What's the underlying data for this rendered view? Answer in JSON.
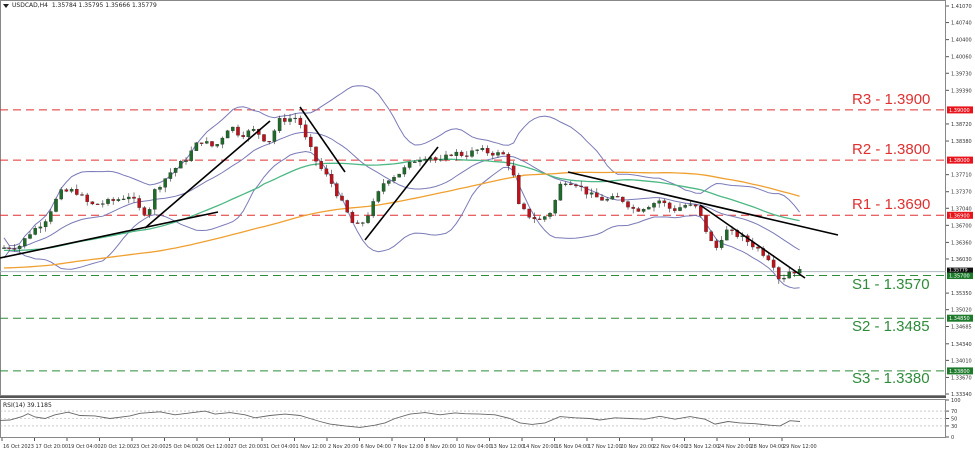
{
  "header": {
    "symbol": "USDCAD,H4",
    "ohlc": "1.35784 1.35795 1.35666 1.35779"
  },
  "colors": {
    "bull": "#1e6b2a",
    "bear": "#c0111b",
    "resistance": "#e03030",
    "support": "#2e8b3a",
    "bollinger": "#7a7ab8",
    "ma_green": "#4cb884",
    "ma_orange": "#f0a030",
    "trendline": "#000000",
    "rsi": "#666666"
  },
  "price_axis": {
    "ticks": [
      "1.41070",
      "1.40740",
      "1.40400",
      "1.40060",
      "1.39730",
      "1.39390",
      "1.38720",
      "1.38380",
      "1.37710",
      "1.37370",
      "1.37040",
      "1.36700",
      "1.36360",
      "1.36030",
      "1.35350",
      "1.35020",
      "1.34685",
      "1.34340",
      "1.34010",
      "1.33670",
      "1.33340"
    ],
    "current_price_tag": "1.35779",
    "current_price_tag2": "1.35700"
  },
  "levels": [
    {
      "name": "R3",
      "value": "1.3900",
      "label": "R3 - 1.3900",
      "tag": "1.39000",
      "type": "resistance"
    },
    {
      "name": "R2",
      "value": "1.3800",
      "label": "R2 - 1.3800",
      "tag": "1.38000",
      "type": "resistance"
    },
    {
      "name": "R1",
      "value": "1.3690",
      "label": "R1 - 1.3690",
      "tag": "1.36900",
      "type": "resistance"
    },
    {
      "name": "S1",
      "value": "1.3570",
      "label": "S1 - 1.3570",
      "tag": "1.35700",
      "type": "support"
    },
    {
      "name": "S2",
      "value": "1.3485",
      "label": "S2 - 1.3485",
      "tag": "1.34850",
      "type": "support"
    },
    {
      "name": "S3",
      "value": "1.3380",
      "label": "S3 - 1.3380",
      "tag": "1.33800",
      "type": "support"
    }
  ],
  "rsi": {
    "label": "RSI(14) 39.1185",
    "ticks": [
      "100",
      "70",
      "50",
      "30",
      "0"
    ]
  },
  "time_axis": {
    "labels": [
      "16 Oct 2023",
      "17 Oct 20:00",
      "19 Oct 04:00",
      "20 Oct 12:00",
      "23 Oct 20:00",
      "25 Oct 04:00",
      "26 Oct 12:00",
      "27 Oct 20:00",
      "31 Oct 04:00",
      "1 Nov 12:00",
      "2 Nov 20:00",
      "6 Nov 04:00",
      "7 Nov 12:00",
      "8 Nov 20:00",
      "10 Nov 04:00",
      "13 Nov 12:00",
      "14 Nov 20:00",
      "16 Nov 04:00",
      "17 Nov 12:00",
      "20 Nov 20:00",
      "22 Nov 04:00",
      "23 Nov 12:00",
      "24 Nov 20:00",
      "28 Nov 04:00",
      "29 Nov 12:00"
    ]
  },
  "chart_data": {
    "type": "candlestick",
    "title": "USDCAD,H4",
    "ylabel": "Price",
    "ylim": [
      1.3334,
      1.4107
    ],
    "indicators": [
      "Bollinger Bands",
      "Moving Average (green)",
      "Moving Average (orange)",
      "RSI(14)"
    ],
    "rsi_value": 39.1185,
    "rsi_levels": [
      70,
      50,
      30
    ],
    "levels": {
      "R3": 1.39,
      "R2": 1.38,
      "R1": 1.369,
      "S1": 1.357,
      "S2": 1.3485,
      "S3": 1.338
    },
    "approx_close_path": [
      {
        "x": "16 Oct 2023",
        "close": 1.3625
      },
      {
        "x": "17 Oct 20:00",
        "close": 1.3665
      },
      {
        "x": "19 Oct 04:00",
        "close": 1.3735
      },
      {
        "x": "20 Oct 12:00",
        "close": 1.371
      },
      {
        "x": "23 Oct 20:00",
        "close": 1.37
      },
      {
        "x": "25 Oct 04:00",
        "close": 1.38
      },
      {
        "x": "26 Oct 12:00",
        "close": 1.383
      },
      {
        "x": "27 Oct 20:00",
        "close": 1.386
      },
      {
        "x": "31 Oct 04:00",
        "close": 1.388
      },
      {
        "x": "1 Nov 12:00",
        "close": 1.379
      },
      {
        "x": "2 Nov 20:00",
        "close": 1.37
      },
      {
        "x": "6 Nov 04:00",
        "close": 1.366
      },
      {
        "x": "7 Nov 12:00",
        "close": 1.376
      },
      {
        "x": "8 Nov 20:00",
        "close": 1.379
      },
      {
        "x": "10 Nov 04:00",
        "close": 1.38
      },
      {
        "x": "13 Nov 12:00",
        "close": 1.379
      },
      {
        "x": "14 Nov 20:00",
        "close": 1.368
      },
      {
        "x": "16 Nov 04:00",
        "close": 1.373
      },
      {
        "x": "17 Nov 12:00",
        "close": 1.372
      },
      {
        "x": "20 Nov 20:00",
        "close": 1.3715
      },
      {
        "x": "22 Nov 04:00",
        "close": 1.372
      },
      {
        "x": "23 Nov 12:00",
        "close": 1.369
      },
      {
        "x": "24 Nov 20:00",
        "close": 1.364
      },
      {
        "x": "28 Nov 04:00",
        "close": 1.358
      },
      {
        "x": "29 Nov 12:00",
        "close": 1.3578
      }
    ]
  }
}
